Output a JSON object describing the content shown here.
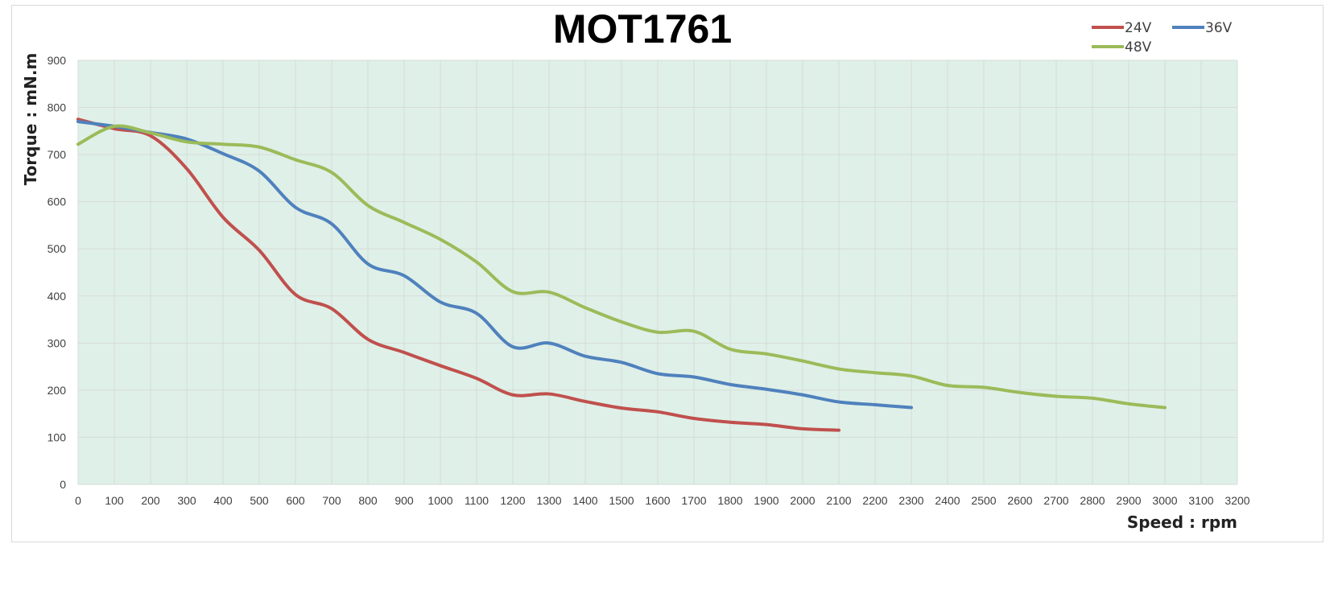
{
  "chart_data": {
    "type": "line",
    "title": "MOT1761",
    "xlabel": "Speed : rpm",
    "ylabel": "Torque : mN.m",
    "xlim": [
      0,
      3200
    ],
    "ylim": [
      0,
      900
    ],
    "x_ticks": [
      "0",
      "100",
      "200",
      "300",
      "400",
      "500",
      "600",
      "700",
      "800",
      "900",
      "1000",
      "1100",
      "1200",
      "1300",
      "1400",
      "1500",
      "1600",
      "1700",
      "1800",
      "1900",
      "2000",
      "2100",
      "2200",
      "2300",
      "2400",
      "2500",
      "2600",
      "2700",
      "2800",
      "2900",
      "3000",
      "3100",
      "3200"
    ],
    "y_ticks": [
      "0",
      "100",
      "200",
      "300",
      "400",
      "500",
      "600",
      "700",
      "800",
      "900"
    ],
    "grid": true,
    "plot_background": "#dff0e8",
    "legend_position": "top-right",
    "series": [
      {
        "name": "24V",
        "color": "#c0504d",
        "x": [
          0,
          100,
          200,
          300,
          400,
          500,
          600,
          700,
          800,
          900,
          1000,
          1100,
          1200,
          1300,
          1400,
          1500,
          1600,
          1700,
          1800,
          1900,
          2000,
          2100
        ],
        "y": [
          775,
          755,
          740,
          670,
          567,
          497,
          403,
          373,
          308,
          280,
          252,
          225,
          190,
          192,
          176,
          162,
          154,
          140,
          132,
          127,
          118,
          115
        ]
      },
      {
        "name": "36V",
        "color": "#4f81bd",
        "x": [
          0,
          100,
          200,
          300,
          400,
          500,
          600,
          700,
          800,
          900,
          1000,
          1100,
          1200,
          1300,
          1400,
          1500,
          1600,
          1700,
          1800,
          1900,
          2000,
          2100,
          2200,
          2300
        ],
        "y": [
          770,
          760,
          747,
          733,
          702,
          665,
          588,
          553,
          468,
          443,
          387,
          363,
          292,
          300,
          272,
          259,
          235,
          228,
          212,
          202,
          190,
          175,
          169,
          163
        ]
      },
      {
        "name": "48V",
        "color": "#9bbb59",
        "x": [
          0,
          100,
          200,
          300,
          400,
          500,
          600,
          700,
          800,
          900,
          1000,
          1100,
          1200,
          1300,
          1400,
          1500,
          1600,
          1700,
          1800,
          1900,
          2000,
          2100,
          2200,
          2300,
          2400,
          2500,
          2600,
          2700,
          2800,
          2900,
          3000
        ],
        "y": [
          722,
          760,
          746,
          727,
          722,
          716,
          689,
          662,
          592,
          556,
          520,
          472,
          409,
          408,
          375,
          345,
          323,
          325,
          287,
          277,
          262,
          245,
          237,
          230,
          210,
          206,
          195,
          187,
          183,
          171,
          163
        ]
      }
    ]
  }
}
